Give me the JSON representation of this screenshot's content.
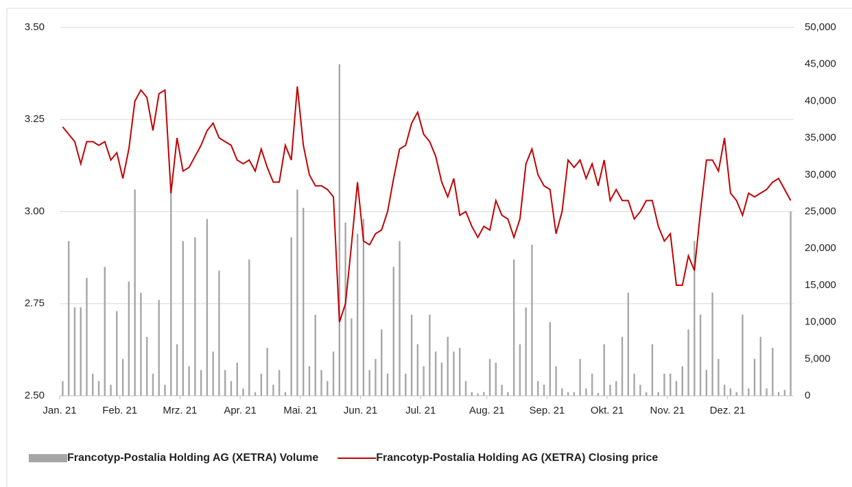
{
  "chart_data": {
    "type": "bar-line",
    "categories": [
      "Jan. 21",
      null,
      null,
      null,
      null,
      null,
      null,
      null,
      null,
      null,
      "Feb. 21",
      null,
      null,
      null,
      null,
      null,
      null,
      null,
      null,
      null,
      "Mrz. 21",
      null,
      null,
      null,
      null,
      null,
      null,
      null,
      null,
      null,
      "Apr. 21",
      null,
      null,
      null,
      null,
      null,
      null,
      null,
      null,
      null,
      "Mai. 21",
      null,
      null,
      null,
      null,
      null,
      null,
      null,
      null,
      null,
      "Jun. 21",
      null,
      null,
      null,
      null,
      null,
      null,
      null,
      null,
      null,
      "Jul. 21",
      null,
      null,
      null,
      null,
      null,
      null,
      null,
      null,
      null,
      null,
      "Aug. 21",
      null,
      null,
      null,
      null,
      null,
      null,
      null,
      null,
      null,
      "Sep. 21",
      null,
      null,
      null,
      null,
      null,
      null,
      null,
      null,
      null,
      "Okt. 21",
      null,
      null,
      null,
      null,
      null,
      null,
      null,
      null,
      null,
      "Nov. 21",
      null,
      null,
      null,
      null,
      null,
      null,
      null,
      null,
      null,
      "Dez. 21",
      null,
      null,
      null,
      null,
      null,
      null,
      null,
      null,
      null,
      null
    ],
    "series": [
      {
        "name": "Francotyp-Postalia Holding AG (XETRA) Volume",
        "color": "#a6a6a6",
        "axis": "y2",
        "kind": "bar",
        "values": [
          2000,
          21000,
          12000,
          12000,
          16000,
          3000,
          2000,
          17500,
          1500,
          11500,
          5000,
          15500,
          28000,
          14000,
          8000,
          3000,
          13000,
          1500,
          28500,
          7000,
          21000,
          4000,
          21500,
          3500,
          24000,
          6000,
          17000,
          3500,
          2000,
          4500,
          1000,
          18500,
          500,
          3000,
          6500,
          1500,
          3500,
          500,
          21500,
          28000,
          25500,
          4000,
          11000,
          3500,
          2000,
          6000,
          45000,
          23500,
          10500,
          22000,
          24000,
          3500,
          5000,
          9000,
          3000,
          17500,
          21000,
          3000,
          11000,
          7000,
          4000,
          11000,
          6000,
          4500,
          8000,
          6000,
          6500,
          2000,
          500,
          300,
          500,
          5000,
          4500,
          1500,
          500,
          18500,
          7000,
          12000,
          20500,
          2000,
          1500,
          10000,
          4000,
          1000,
          500,
          500,
          5000,
          1000,
          3000,
          400,
          7000,
          1500,
          2000,
          8000,
          14000,
          3000,
          1500,
          500,
          7000,
          500,
          3000,
          3000,
          2000,
          4000,
          9000,
          21000,
          11000,
          3500,
          14000,
          5000,
          1500,
          1000,
          500,
          11000,
          1000,
          5000,
          8000,
          1000,
          6500,
          500,
          800,
          25000
        ]
      },
      {
        "name": "Francotyp-Postalia Holding AG (XETRA) Closing price",
        "color": "#c00000",
        "axis": "y",
        "kind": "line",
        "values": [
          3.23,
          3.21,
          3.19,
          3.13,
          3.19,
          3.19,
          3.18,
          3.19,
          3.14,
          3.16,
          3.09,
          3.17,
          3.3,
          3.33,
          3.31,
          3.22,
          3.32,
          3.33,
          3.05,
          3.2,
          3.11,
          3.12,
          3.15,
          3.18,
          3.22,
          3.24,
          3.2,
          3.19,
          3.18,
          3.14,
          3.13,
          3.14,
          3.11,
          3.17,
          3.12,
          3.08,
          3.08,
          3.18,
          3.14,
          3.34,
          3.18,
          3.1,
          3.07,
          3.07,
          3.06,
          3.04,
          2.7,
          2.75,
          2.91,
          3.08,
          2.92,
          2.91,
          2.94,
          2.95,
          3.0,
          3.09,
          3.17,
          3.18,
          3.24,
          3.27,
          3.21,
          3.19,
          3.15,
          3.08,
          3.04,
          3.09,
          2.99,
          3.0,
          2.96,
          2.93,
          2.96,
          2.95,
          3.03,
          2.99,
          2.98,
          2.93,
          2.98,
          3.13,
          3.17,
          3.1,
          3.07,
          3.06,
          2.94,
          3.0,
          3.14,
          3.12,
          3.14,
          3.09,
          3.13,
          3.07,
          3.14,
          3.03,
          3.06,
          3.03,
          3.03,
          2.98,
          3.0,
          3.03,
          3.03,
          2.96,
          2.92,
          2.94,
          2.8,
          2.8,
          2.88,
          2.84,
          3.0,
          3.14,
          3.14,
          3.11,
          3.2,
          3.05,
          3.03,
          2.99,
          3.05,
          3.04,
          3.05,
          3.06,
          3.08,
          3.09,
          3.06,
          3.03
        ]
      }
    ],
    "ylim": [
      2.5,
      3.5
    ],
    "yticks": [
      {
        "value": 2.5,
        "label": "2.50"
      },
      2.75,
      {
        "value": 3.0,
        "label": "3.00"
      },
      3.25,
      {
        "value": 3.5,
        "label": "3.50"
      }
    ],
    "y2lim": [
      0,
      50000
    ],
    "y2ticks": [
      0,
      {
        "value": 5000,
        "label": "5,000"
      },
      {
        "value": 10000,
        "label": "10,000"
      },
      {
        "value": 15000,
        "label": "15,000"
      },
      {
        "value": 20000,
        "label": "20,000"
      },
      {
        "value": 25000,
        "label": "25,000"
      },
      {
        "value": 30000,
        "label": "30,000"
      },
      {
        "value": 35000,
        "label": "35,000"
      },
      {
        "value": 40000,
        "label": "40,000"
      },
      {
        "value": 45000,
        "label": "45,000"
      },
      {
        "value": 50000,
        "label": "50,000"
      }
    ],
    "grid": true,
    "legend": "bottom"
  }
}
